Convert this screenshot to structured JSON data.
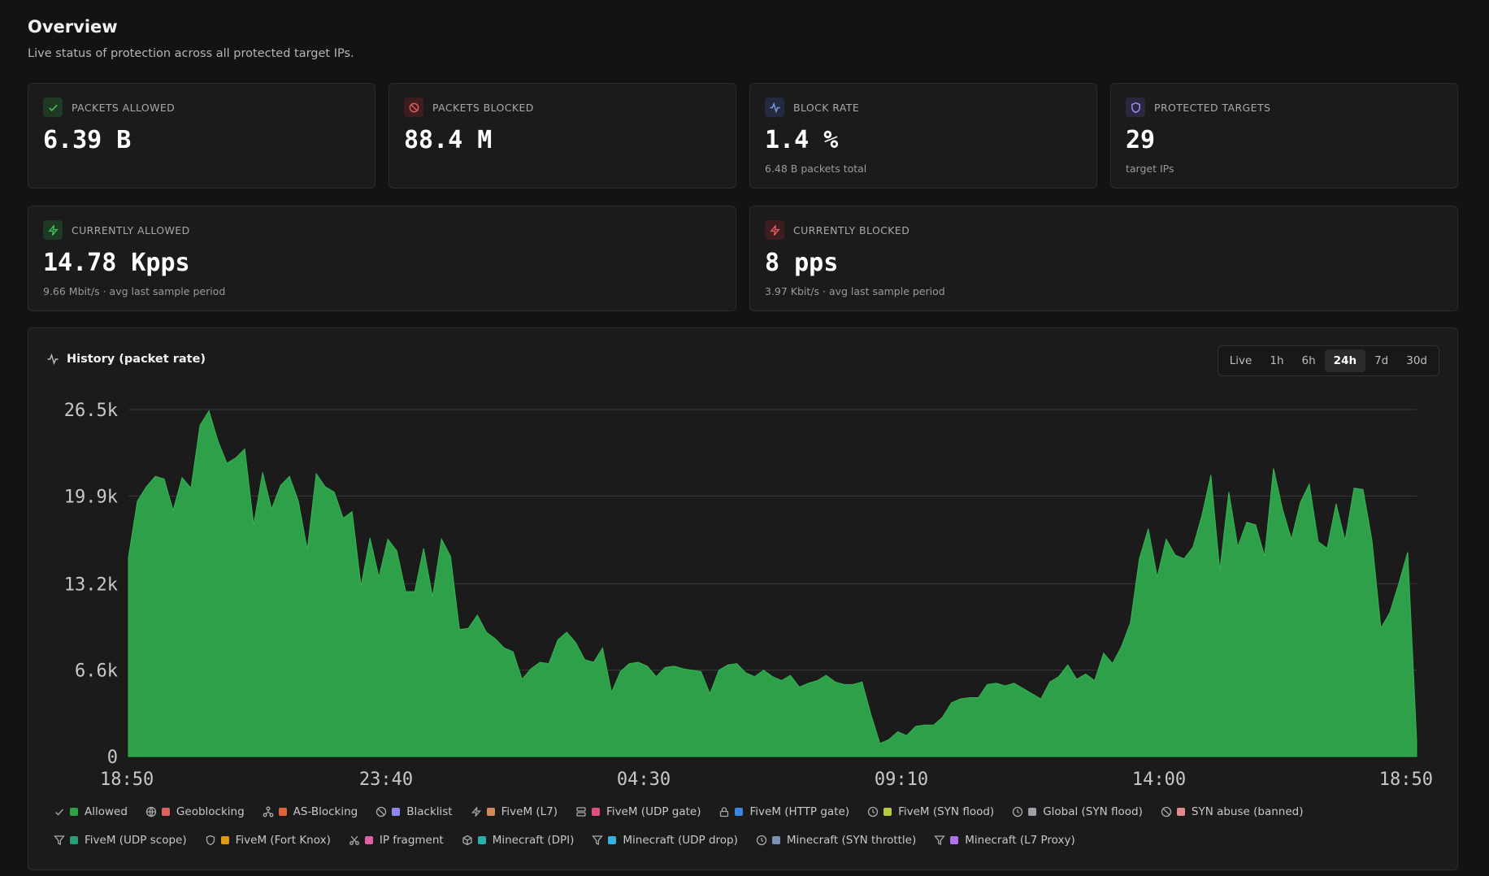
{
  "header": {
    "title": "Overview",
    "subtitle": "Live status of protection across all protected target IPs."
  },
  "stats": {
    "packets_allowed": {
      "label": "PACKETS ALLOWED",
      "value": "6.39 B",
      "icon": "check-icon"
    },
    "packets_blocked": {
      "label": "PACKETS BLOCKED",
      "value": "88.4 M",
      "icon": "ban-icon"
    },
    "block_rate": {
      "label": "BLOCK RATE",
      "value": "1.4 %",
      "sub": "6.48 B packets total",
      "icon": "activity-icon"
    },
    "protected_targets": {
      "label": "PROTECTED TARGETS",
      "value": "29",
      "sub": "target IPs",
      "icon": "shield-icon"
    },
    "currently_allowed": {
      "label": "CURRENTLY ALLOWED",
      "value": "14.78 Kpps",
      "sub": "9.66 Mbit/s · avg last sample period",
      "icon": "zap-icon"
    },
    "currently_blocked": {
      "label": "CURRENTLY BLOCKED",
      "value": "8 pps",
      "sub": "3.97 Kbit/s · avg last sample period",
      "icon": "zap-icon"
    }
  },
  "history": {
    "title": "History (packet rate)",
    "ranges": [
      "Live",
      "1h",
      "6h",
      "24h",
      "7d",
      "30d"
    ],
    "active_range": "24h"
  },
  "chart_data": {
    "type": "area",
    "ylim": [
      0,
      26500
    ],
    "y_ticks": [
      0,
      6600,
      13200,
      19900,
      26500
    ],
    "y_tick_labels": [
      "0",
      "6.6k",
      "13.2k",
      "19.9k",
      "26.5k"
    ],
    "x_tick_labels": [
      "18:50",
      "23:40",
      "04:30",
      "09:10",
      "14:00",
      "18:50"
    ],
    "grid": true,
    "series": [
      {
        "name": "Allowed",
        "color": "#2fa04a",
        "values": [
          15200,
          19500,
          20600,
          21400,
          21200,
          18800,
          21300,
          20500,
          25300,
          26400,
          24100,
          22400,
          22800,
          23500,
          17700,
          21700,
          18900,
          20700,
          21400,
          19500,
          15800,
          21600,
          20600,
          20200,
          18200,
          18700,
          13000,
          16700,
          13700,
          16600,
          15700,
          12600,
          12600,
          15900,
          12200,
          16600,
          15300,
          9700,
          9800,
          10800,
          9500,
          9000,
          8300,
          8000,
          5900,
          6700,
          7200,
          7100,
          8900,
          9500,
          8700,
          7400,
          7200,
          8300,
          4900,
          6500,
          7100,
          7200,
          6900,
          6100,
          6800,
          6900,
          6700,
          6600,
          6500,
          4800,
          6600,
          7000,
          7100,
          6400,
          6100,
          6600,
          6100,
          5800,
          6200,
          5300,
          5600,
          5800,
          6200,
          5700,
          5500,
          5500,
          5700,
          3200,
          1000,
          1300,
          1900,
          1600,
          2300,
          2400,
          2400,
          3000,
          4100,
          4400,
          4500,
          4500,
          5500,
          5600,
          5400,
          5600,
          5200,
          4800,
          4400,
          5700,
          6100,
          7000,
          5900,
          6300,
          5800,
          7900,
          7100,
          8400,
          10200,
          15100,
          17400,
          13700,
          16600,
          15400,
          15100,
          16000,
          18400,
          21500,
          14200,
          20200,
          16000,
          17900,
          17700,
          15300,
          22000,
          18900,
          16600,
          19400,
          20800,
          16400,
          15900,
          19300,
          16500,
          20500,
          20400,
          16500,
          9800,
          11000,
          13200,
          15600,
          1200
        ]
      }
    ]
  },
  "legend": [
    {
      "label": "Allowed",
      "color": "#2fa04a",
      "icon": "check-icon"
    },
    {
      "label": "Geoblocking",
      "color": "#e06060",
      "icon": "globe-icon"
    },
    {
      "label": "AS-Blocking",
      "color": "#e0643a",
      "icon": "network-icon"
    },
    {
      "label": "Blacklist",
      "color": "#8f87f0",
      "icon": "ban-icon"
    },
    {
      "label": "FiveM (L7)",
      "color": "#d08a5a",
      "icon": "zap-icon"
    },
    {
      "label": "FiveM (UDP gate)",
      "color": "#e0507a",
      "icon": "server-icon"
    },
    {
      "label": "FiveM (HTTP gate)",
      "color": "#3a86e0",
      "icon": "lock-icon"
    },
    {
      "label": "FiveM (SYN flood)",
      "color": "#b8c840",
      "icon": "clock-icon"
    },
    {
      "label": "Global (SYN flood)",
      "color": "#a0a0a8",
      "icon": "clock-icon"
    },
    {
      "label": "SYN abuse (banned)",
      "color": "#e08a8a",
      "icon": "ban-icon"
    },
    {
      "label": "FiveM (UDP scope)",
      "color": "#2a9a78",
      "icon": "filter-icon"
    },
    {
      "label": "FiveM (Fort Knox)",
      "color": "#e09a10",
      "icon": "shield-icon"
    },
    {
      "label": "IP fragment",
      "color": "#e060a8",
      "icon": "scissors-icon"
    },
    {
      "label": "Minecraft (DPI)",
      "color": "#2ab0a8",
      "icon": "box-icon"
    },
    {
      "label": "Minecraft (UDP drop)",
      "color": "#3ab0e0",
      "icon": "filter-icon"
    },
    {
      "label": "Minecraft (SYN throttle)",
      "color": "#7a90b8",
      "icon": "clock-icon"
    },
    {
      "label": "Minecraft (L7 Proxy)",
      "color": "#b070e8",
      "icon": "filter-icon"
    }
  ]
}
